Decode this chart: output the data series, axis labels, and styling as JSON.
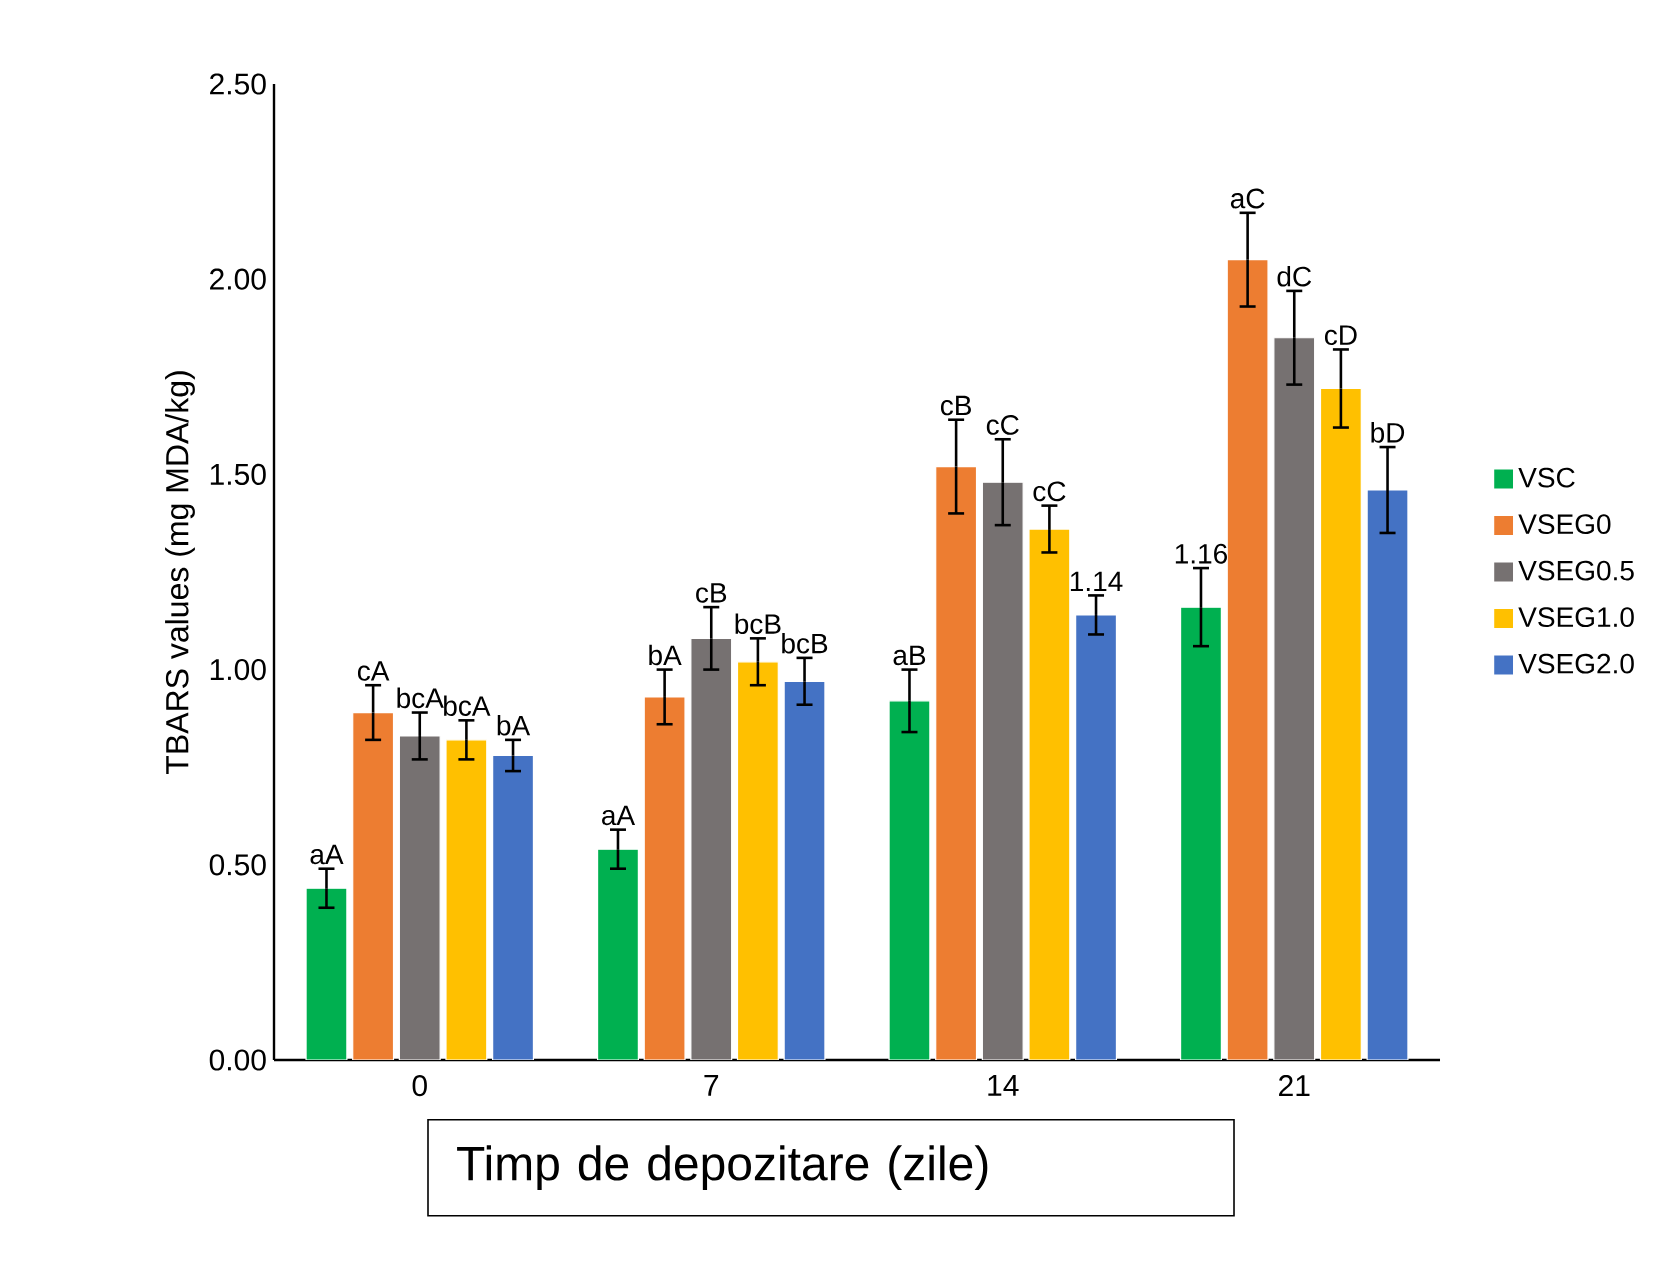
{
  "chart_data": {
    "type": "bar",
    "xlabel": "Timp de depozitare (zile)",
    "ylabel": "TBARS values (mg MDA/kg)",
    "categories": [
      "0",
      "7",
      "14",
      "21"
    ],
    "ylim": [
      0,
      2.5
    ],
    "yticks": [
      {
        "value": 0,
        "label": "0.00"
      },
      {
        "value": 0.5,
        "label": "0.50"
      },
      {
        "value": 1,
        "label": "1.00"
      },
      {
        "value": 1.5,
        "label": "1.50"
      },
      {
        "value": 2,
        "label": "2.00"
      },
      {
        "value": 2.5,
        "label": "2.50"
      }
    ],
    "grid": false,
    "legend": "right",
    "series": [
      {
        "name": "VSC",
        "color": "#00b050",
        "values": [
          0.44,
          0.54,
          0.92,
          1.16
        ],
        "errors": [
          0.05,
          0.05,
          0.08,
          0.1
        ],
        "value_labels": [
          "aA",
          "aA",
          "aB",
          "1.16"
        ]
      },
      {
        "name": "VSEG0",
        "color": "#ed7d31",
        "values": [
          0.89,
          0.93,
          1.52,
          2.05
        ],
        "errors": [
          0.07,
          0.07,
          0.12,
          0.12
        ],
        "value_labels": [
          "cA",
          "bA",
          "cB",
          "aC"
        ]
      },
      {
        "name": "VSEG0.5",
        "color": "#767171",
        "values": [
          0.83,
          1.08,
          1.48,
          1.85
        ],
        "errors": [
          0.06,
          0.08,
          0.11,
          0.12
        ],
        "value_labels": [
          "bcA",
          "cB",
          "cC",
          "dC"
        ]
      },
      {
        "name": "VSEG1.0",
        "color": "#ffc000",
        "values": [
          0.82,
          1.02,
          1.36,
          1.72
        ],
        "errors": [
          0.05,
          0.06,
          0.06,
          0.1
        ],
        "value_labels": [
          "bcA",
          "bcB",
          "cC",
          "cD"
        ]
      },
      {
        "name": "VSEG2.0",
        "color": "#4472c4",
        "values": [
          0.78,
          0.97,
          1.14,
          1.46
        ],
        "errors": [
          0.04,
          0.06,
          0.05,
          0.11
        ],
        "value_labels": [
          "bA",
          "bcB",
          "1.14",
          "bD"
        ]
      }
    ]
  }
}
